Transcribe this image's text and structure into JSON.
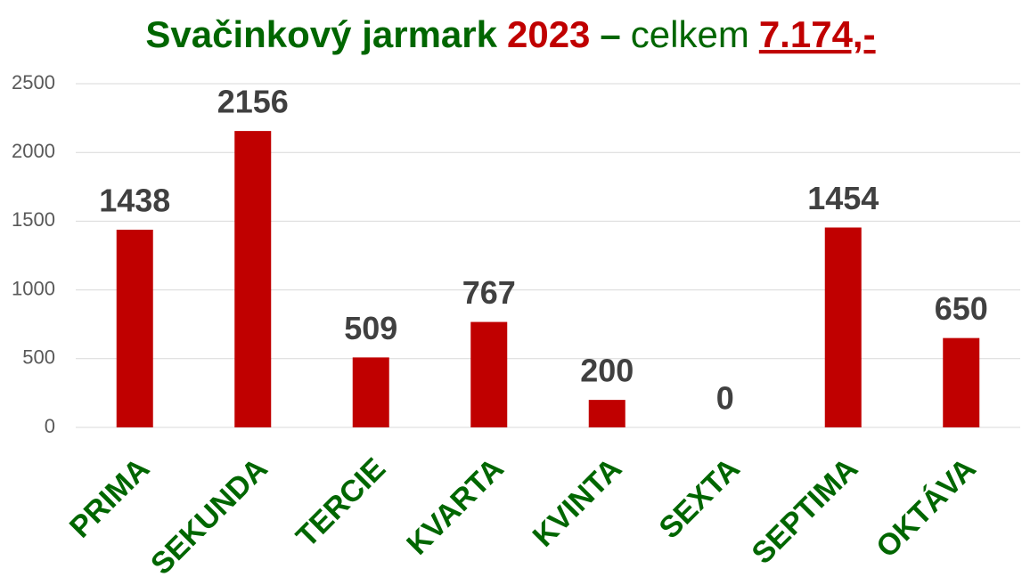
{
  "chart_data": {
    "type": "bar",
    "title_parts": [
      {
        "text": "Svačinkový jarmark",
        "color": "#006600",
        "bold": true,
        "underline": false
      },
      {
        "text": "2023",
        "color": "#c00000",
        "bold": true,
        "underline": false
      },
      {
        "text": "–",
        "color": "#006600",
        "bold": true,
        "underline": false
      },
      {
        "text": "celkem",
        "color": "#006600",
        "bold": false,
        "underline": false
      },
      {
        "text": "7.174,-",
        "color": "#c00000",
        "bold": true,
        "underline": true
      }
    ],
    "categories": [
      "PRIMA",
      "SEKUNDA",
      "TERCIE",
      "KVARTA",
      "KVINTA",
      "SEXTA",
      "SEPTIMA",
      "OKTÁVA"
    ],
    "values": [
      1438,
      2156,
      509,
      767,
      200,
      0,
      1454,
      650
    ],
    "color": "#c00000",
    "category_color": "#006600",
    "ylim": [
      0,
      2500
    ],
    "yticks": [
      0,
      500,
      1000,
      1500,
      2000,
      2500
    ],
    "grid": true
  }
}
